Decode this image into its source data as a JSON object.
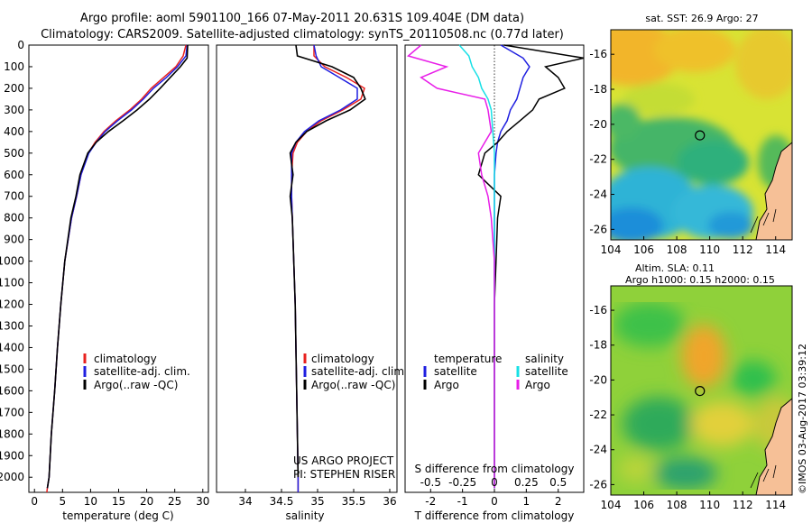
{
  "header": {
    "line1": "Argo profile: aoml 5901100_166 07-May-2011 20.631S 109.404E (DM data)",
    "line2": "Climatology: CARS2009. Satellite-adjusted climatology: synTS_20110508.nc (0.77d later)"
  },
  "colors": {
    "clim": "#e8211f",
    "sat": "#1f1fe0",
    "argo": "#000000",
    "sat_diff_s": "#18e0e6",
    "argo_diff_s": "#e81ee8"
  },
  "chart_data": [
    {
      "type": "line",
      "name": "temperature",
      "xlabel": "temperature (deg C)",
      "ylabel": "",
      "xlim": [
        -1,
        31
      ],
      "ylim": [
        2070,
        0
      ],
      "xticks": [
        "0",
        "5",
        "10",
        "15",
        "20",
        "25",
        "30"
      ],
      "yticks": [
        "0",
        "100",
        "200",
        "300",
        "400",
        "500",
        "600",
        "700",
        "800",
        "900",
        "1000",
        "1100",
        "1200",
        "1300",
        "1400",
        "1500",
        "1600",
        "1700",
        "1800",
        "1900",
        "2000"
      ],
      "legend": [
        "climatology",
        "satellite-adj. clim.",
        "Argo(..raw -QC)"
      ],
      "series": [
        {
          "key": "clim",
          "x": [
            27.0,
            26.5,
            25.2,
            23.0,
            20.8,
            19.1,
            17.0,
            14.5,
            12.4,
            10.8,
            9.6,
            8.3,
            7.5,
            6.6,
            5.4,
            4.7,
            4.1,
            3.6,
            3.0,
            2.6,
            2.3,
            2.2
          ],
          "y": [
            0,
            50,
            100,
            150,
            200,
            250,
            300,
            350,
            400,
            450,
            500,
            600,
            700,
            800,
            1000,
            1200,
            1400,
            1600,
            1800,
            2000,
            2050,
            2070
          ]
        },
        {
          "key": "sat",
          "x": [
            27.2,
            27.0,
            25.5,
            23.5,
            21.2,
            19.4,
            17.3,
            14.8,
            12.6,
            11.0,
            9.7,
            8.3,
            7.5,
            6.6,
            5.4,
            4.7,
            4.1,
            3.6,
            3.0,
            2.6,
            2.3
          ],
          "y": [
            0,
            50,
            100,
            150,
            200,
            250,
            300,
            350,
            400,
            450,
            500,
            600,
            700,
            800,
            1000,
            1200,
            1400,
            1600,
            1800,
            2000,
            2050
          ]
        },
        {
          "key": "argo",
          "x": [
            27.3,
            27.2,
            26.0,
            24.2,
            22.4,
            20.5,
            18.3,
            15.8,
            13.2,
            11.0,
            9.5,
            8.1,
            7.4,
            6.5,
            5.4,
            4.7,
            4.1,
            3.6,
            3.0,
            2.6,
            2.3
          ],
          "y": [
            0,
            60,
            100,
            150,
            200,
            250,
            300,
            350,
            400,
            450,
            500,
            600,
            700,
            800,
            1000,
            1200,
            1400,
            1600,
            1800,
            2000,
            2050
          ]
        }
      ]
    },
    {
      "type": "line",
      "name": "salinity",
      "xlabel": "salinity",
      "xlim": [
        33.6,
        36.1
      ],
      "ylim": [
        2070,
        0
      ],
      "xticks": [
        "34",
        "34.5",
        "35",
        "35.5",
        "36"
      ],
      "legend": [
        "climatology",
        "satellite-adj. clim.",
        "Argo(..raw -QC)"
      ],
      "credit": [
        "US ARGO PROJECT",
        "PI: STEPHEN RISER"
      ],
      "series": [
        {
          "key": "clim",
          "x": [
            34.95,
            34.95,
            35.1,
            35.4,
            35.65,
            35.6,
            35.35,
            35.05,
            34.85,
            34.72,
            34.66,
            34.64,
            34.64,
            34.65,
            34.67,
            34.69,
            34.7,
            34.71,
            34.72,
            34.73,
            34.73
          ],
          "y": [
            0,
            50,
            100,
            150,
            200,
            250,
            300,
            350,
            400,
            450,
            500,
            600,
            700,
            800,
            1000,
            1200,
            1400,
            1600,
            1800,
            2000,
            2070
          ]
        },
        {
          "key": "sat",
          "x": [
            34.95,
            34.98,
            35.05,
            35.3,
            35.55,
            35.55,
            35.32,
            35.02,
            34.82,
            34.7,
            34.64,
            34.64,
            34.64,
            34.65,
            34.67,
            34.69,
            34.7,
            34.71,
            34.72,
            34.73,
            34.73
          ],
          "y": [
            0,
            50,
            100,
            150,
            200,
            250,
            300,
            350,
            400,
            450,
            500,
            600,
            700,
            800,
            1000,
            1200,
            1400,
            1600,
            1800,
            2000,
            2070
          ]
        },
        {
          "key": "argo",
          "x": [
            34.7,
            34.72,
            35.2,
            35.5,
            35.6,
            35.66,
            35.45,
            35.12,
            34.85,
            34.7,
            34.62,
            34.66,
            34.62,
            34.65,
            34.67,
            34.69,
            34.7,
            34.71,
            34.72,
            34.73
          ],
          "y": [
            0,
            50,
            100,
            150,
            200,
            250,
            300,
            350,
            400,
            450,
            500,
            600,
            700,
            800,
            1000,
            1200,
            1400,
            1600,
            1800,
            2000
          ]
        }
      ]
    },
    {
      "type": "line",
      "name": "difference",
      "xlabel": "T difference from climatology",
      "xlabel_top": "S difference from climatology",
      "xlim": [
        -2.8,
        2.8
      ],
      "ylim": [
        2070,
        0
      ],
      "xticks": [
        "-2",
        "-1",
        "0",
        "1",
        "2"
      ],
      "xticks_top": [
        "-0.5",
        "-0.25",
        "0",
        "0.25",
        "0.5"
      ],
      "legend_groups": [
        "temperature",
        "salinity"
      ],
      "legend": [
        "satellite",
        "Argo",
        "satellite",
        "Argo"
      ],
      "series": [
        {
          "key": "sat_diff_t",
          "x": [
            0.2,
            0.9,
            1.1,
            0.9,
            0.8,
            0.7,
            0.5,
            0.4,
            0.2,
            0.1,
            0.05,
            0,
            0,
            0,
            0,
            0,
            0,
            0,
            0,
            0,
            0
          ],
          "y": [
            0,
            60,
            100,
            150,
            200,
            250,
            300,
            350,
            400,
            450,
            500,
            600,
            700,
            800,
            1000,
            1200,
            1400,
            1600,
            1800,
            2000,
            2050
          ]
        },
        {
          "key": "argo_diff_t",
          "x": [
            0.3,
            2.8,
            1.6,
            2.0,
            2.2,
            1.4,
            1.2,
            0.8,
            0.4,
            0.1,
            -0.3,
            -0.5,
            0.2,
            0.1,
            0.05,
            0,
            0,
            0,
            0,
            0,
            0
          ],
          "y": [
            0,
            60,
            100,
            150,
            200,
            250,
            300,
            350,
            400,
            450,
            500,
            600,
            700,
            800,
            1000,
            1200,
            1400,
            1600,
            1800,
            2000,
            2050
          ]
        },
        {
          "key": "sat_diff_s",
          "x": [
            -1.1,
            -0.8,
            -0.7,
            -0.5,
            -0.4,
            -0.2,
            -0.1,
            -0.05,
            0,
            0,
            0,
            0,
            0,
            0,
            0,
            0,
            0,
            0,
            0
          ],
          "y": [
            0,
            50,
            100,
            150,
            200,
            250,
            300,
            400,
            500,
            600,
            700,
            800,
            1000,
            1200,
            1400,
            1600,
            1800,
            2000,
            2050
          ]
        },
        {
          "key": "argo_diff_s",
          "x": [
            -2.3,
            -2.7,
            -1.5,
            -2.3,
            -1.8,
            -0.3,
            -0.2,
            -0.1,
            -0.5,
            -0.4,
            -0.2,
            -0.1,
            0,
            0,
            0,
            0,
            0,
            0,
            0
          ],
          "y": [
            0,
            50,
            100,
            150,
            200,
            250,
            300,
            400,
            500,
            600,
            700,
            800,
            1000,
            1200,
            1400,
            1600,
            1800,
            2000,
            2050
          ]
        }
      ]
    },
    {
      "type": "heatmap",
      "name": "sst-map",
      "title": "sat. SST: 26.9  Argo: 27",
      "xlim": [
        104,
        115
      ],
      "ylim": [
        -26.6,
        -14.6
      ],
      "xticks": [
        "104",
        "106",
        "108",
        "110",
        "112",
        "114"
      ],
      "yticks": [
        "-16",
        "-18",
        "-20",
        "-22",
        "-24",
        "-26"
      ],
      "marker": {
        "lon": 109.404,
        "lat": -20.631
      }
    },
    {
      "type": "heatmap",
      "name": "sla-map",
      "title": [
        "Altim. SLA: 0.11",
        "Argo h1000: 0.15 h2000: 0.15"
      ],
      "xlim": [
        104,
        115
      ],
      "ylim": [
        -26.6,
        -14.6
      ],
      "xticks": [
        "104",
        "106",
        "108",
        "110",
        "112",
        "114"
      ],
      "yticks": [
        "-16",
        "-18",
        "-20",
        "-22",
        "-24",
        "-26"
      ],
      "marker": {
        "lon": 109.404,
        "lat": -20.631
      }
    }
  ],
  "footer_stamp": "©IMOS 03-Aug-2017 03:39:12"
}
